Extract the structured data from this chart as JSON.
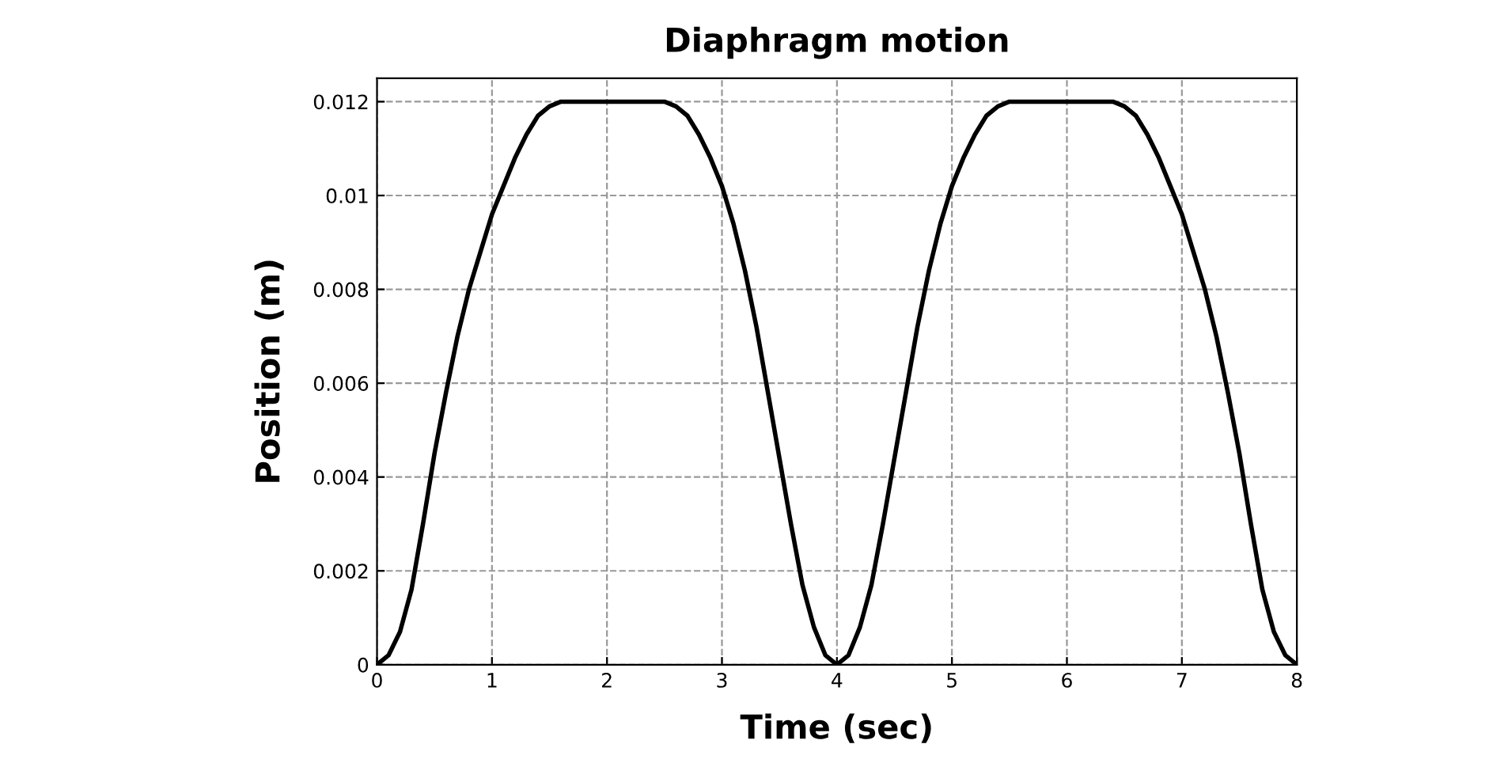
{
  "chart_data": {
    "type": "line",
    "title": "Diaphragm motion",
    "xlabel": "Time (sec)",
    "ylabel": "Position (m)",
    "xlim": [
      0,
      8
    ],
    "ylim": [
      0,
      0.0125
    ],
    "xticks": [
      0,
      1,
      2,
      3,
      4,
      5,
      6,
      7,
      8
    ],
    "yticks": [
      0,
      0.002,
      0.004,
      0.006,
      0.008,
      0.01,
      0.012
    ],
    "grid": true,
    "legend": false,
    "marker": "none",
    "line_style": "solid",
    "series": [
      {
        "color": "#000000",
        "x": [
          0,
          0.1,
          0.2,
          0.3,
          0.4,
          0.5,
          0.6,
          0.7,
          0.8,
          0.9,
          1.0,
          1.1,
          1.2,
          1.3,
          1.4,
          1.5,
          1.6,
          2.5,
          2.6,
          2.7,
          2.8,
          2.9,
          3.0,
          3.1,
          3.2,
          3.3,
          3.4,
          3.5,
          3.6,
          3.7,
          3.8,
          3.9,
          4.0,
          4.1,
          4.2,
          4.3,
          4.4,
          4.5,
          4.6,
          4.7,
          4.8,
          4.9,
          5.0,
          5.1,
          5.2,
          5.3,
          5.4,
          5.5,
          6.4,
          6.5,
          6.6,
          6.7,
          6.8,
          6.9,
          7.0,
          7.1,
          7.2,
          7.3,
          7.4,
          7.5,
          7.6,
          7.7,
          7.8,
          7.9,
          8.0
        ],
        "values": [
          0,
          0.0002,
          0.0007,
          0.0016,
          0.003,
          0.0045,
          0.0058,
          0.007,
          0.008,
          0.0088,
          0.0096,
          0.0102,
          0.0108,
          0.0113,
          0.0117,
          0.0119,
          0.012,
          0.012,
          0.0119,
          0.0117,
          0.0113,
          0.0108,
          0.0102,
          0.0094,
          0.0084,
          0.0072,
          0.0058,
          0.0044,
          0.003,
          0.0017,
          0.0008,
          0.0002,
          0,
          0.0002,
          0.0008,
          0.0017,
          0.003,
          0.0044,
          0.0058,
          0.0072,
          0.0084,
          0.0094,
          0.0102,
          0.0108,
          0.0113,
          0.0117,
          0.0119,
          0.012,
          0.012,
          0.0119,
          0.0117,
          0.0113,
          0.0108,
          0.0102,
          0.0096,
          0.0088,
          0.008,
          0.007,
          0.0058,
          0.0045,
          0.003,
          0.0016,
          0.0007,
          0.0002,
          0
        ]
      }
    ]
  }
}
